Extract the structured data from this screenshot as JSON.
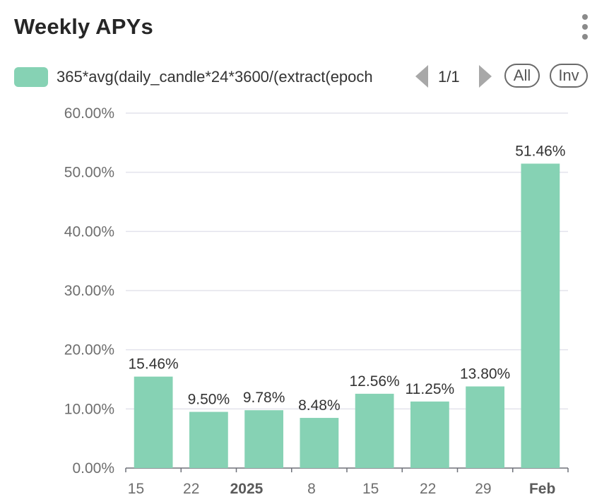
{
  "header": {
    "title": "Weekly APYs",
    "menu_icon": "kebab-menu-icon"
  },
  "legend": {
    "series_label": "365*avg(daily_candle*24*3600/(extract(epoch",
    "swatch_color": "#86d2b4",
    "page_indicator": "1/1",
    "prev_icon": "triangle-left-icon",
    "next_icon": "triangle-right-icon",
    "all_label": "All",
    "inv_label": "Inv"
  },
  "chart_data": {
    "type": "bar",
    "categories": [
      "15",
      "22",
      "2025",
      "8",
      "15",
      "22",
      "29",
      "Feb"
    ],
    "values": [
      15.46,
      9.5,
      9.78,
      8.48,
      12.56,
      11.25,
      13.8,
      51.46
    ],
    "data_labels": [
      "15.46%",
      "9.50%",
      "9.78%",
      "8.48%",
      "12.56%",
      "11.25%",
      "13.80%",
      "51.46%"
    ],
    "x_tick_labels": [
      "15",
      "22",
      "2025",
      "8",
      "15",
      "22",
      "29",
      "Feb"
    ],
    "bold_ticks": [
      "2025",
      "Feb"
    ],
    "y_ticks": [
      "0.00%",
      "10.00%",
      "20.00%",
      "30.00%",
      "40.00%",
      "50.00%",
      "60.00%"
    ],
    "ylim": [
      0,
      60
    ],
    "grid": true,
    "legend_position": "top",
    "bar_color": "#86d2b4",
    "series": [
      {
        "name": "365*avg(daily_candle*24*3600/(extract(epoch",
        "values": [
          15.46,
          9.5,
          9.78,
          8.48,
          12.56,
          11.25,
          13.8,
          51.46
        ]
      }
    ]
  }
}
